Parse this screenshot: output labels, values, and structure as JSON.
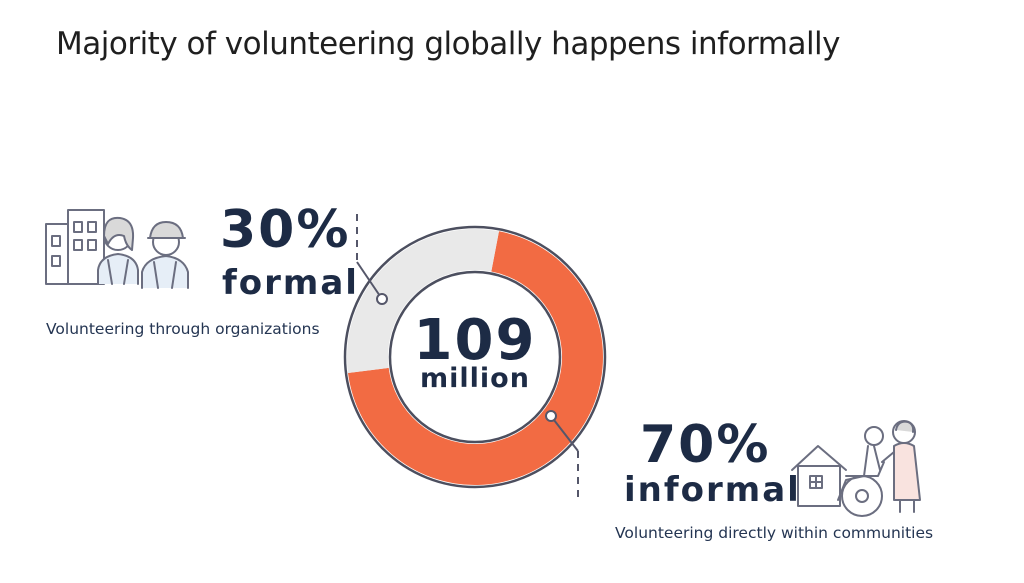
{
  "title": "Majority of volunteering globally happens informally",
  "chart_data": {
    "type": "pie",
    "center_value": "109",
    "center_unit": "million",
    "slices": [
      {
        "name": "formal",
        "pct_label": "30%",
        "value": 30,
        "description": "Volunteering through organizations",
        "color": "#e9e9e9"
      },
      {
        "name": "informal",
        "pct_label": "70%",
        "value": 70,
        "description": "Volunteering directly within communities",
        "color": "#f26b43"
      }
    ]
  },
  "colors": {
    "accent": "#f26b43",
    "track": "#e9e9e9",
    "ink": "#1d2b45",
    "outline": "#4c4f5f"
  },
  "icons": {
    "formal": "buildings-volunteers-icon",
    "informal": "house-wheelchair-caregiver-icon"
  }
}
